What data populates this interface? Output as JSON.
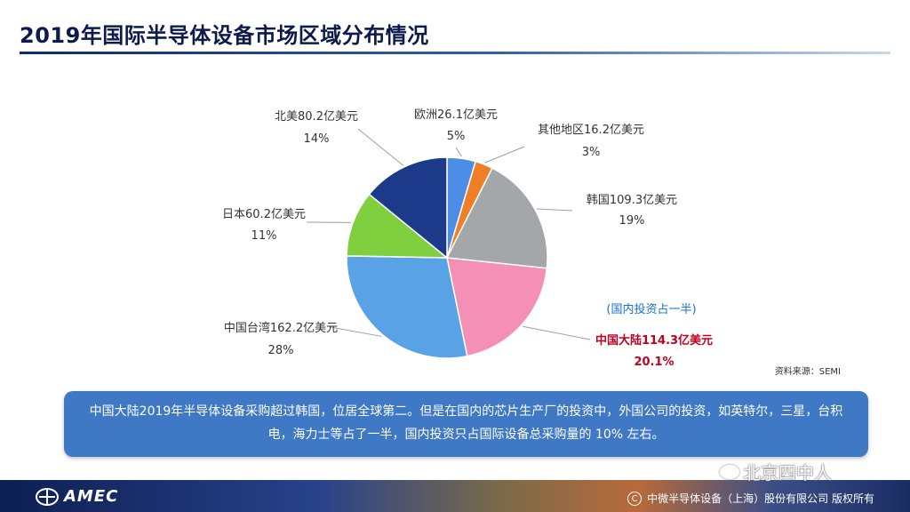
{
  "title": "2019年国际半导体设备市场区域分布情况",
  "colors": {
    "title_rule": "#0b2a73",
    "callout_bg": "#3f78c4",
    "highlight": "#c0001e",
    "note": "#1a6fd0"
  },
  "chart_data": {
    "type": "pie",
    "unit": "亿美元",
    "slices": [
      {
        "label": "欧洲",
        "value": 26.1,
        "value_text": "欧洲26.1亿美元",
        "pct": "5%",
        "color": "#4c8ee6"
      },
      {
        "label": "其他地区",
        "value": 16.2,
        "value_text": "其他地区16.2亿美元",
        "pct": "3%",
        "color": "#f07e26"
      },
      {
        "label": "韩国",
        "value": 109.3,
        "value_text": "韩国109.3亿美元",
        "pct": "19%",
        "color": "#a3a7aa"
      },
      {
        "label": "中国大陆",
        "value": 114.3,
        "value_text": "中国大陆114.3亿美元",
        "pct": "20.1%",
        "color": "#f48fb6",
        "highlight": true
      },
      {
        "label": "中国台湾",
        "value": 162.2,
        "value_text": "中国台湾162.2亿美元",
        "pct": "28%",
        "color": "#5aa2e6"
      },
      {
        "label": "日本",
        "value": 60.2,
        "value_text": "日本60.2亿美元",
        "pct": "11%",
        "color": "#7fcf3f"
      },
      {
        "label": "北美",
        "value": 80.2,
        "value_text": "北美80.2亿美元",
        "pct": "14%",
        "color": "#1d3a8a"
      }
    ],
    "note": "(国内投资占一半)",
    "source": "资料来源：SEMI"
  },
  "callout": {
    "text": "中国大陆2019年半导体设备采购超过韩国，位居全球第二。但是在国内的芯片生产厂的投资中，外国公司的投资，如英特尔，三星，台积电，海力士等占了一半，国内投资只占国际设备总采购量的 10% 左右。"
  },
  "footer": {
    "logo": "AMEC",
    "copyright": "中微半导体设备（上海）股份有限公司 版权所有",
    "copyright_symbol": "C",
    "watermark": "北京四中人"
  }
}
